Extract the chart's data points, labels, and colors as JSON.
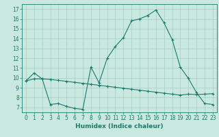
{
  "title": "",
  "xlabel": "Humidex (Indice chaleur)",
  "ylabel": "",
  "xlim": [
    -0.5,
    23.5
  ],
  "ylim": [
    6.5,
    17.5
  ],
  "yticks": [
    7,
    8,
    9,
    10,
    11,
    12,
    13,
    14,
    15,
    16,
    17
  ],
  "xticks": [
    0,
    1,
    2,
    3,
    4,
    5,
    6,
    7,
    8,
    9,
    10,
    11,
    12,
    13,
    14,
    15,
    16,
    17,
    18,
    19,
    20,
    21,
    22,
    23
  ],
  "line1_x": [
    0,
    1,
    2,
    3,
    4,
    5,
    6,
    7,
    8,
    9,
    10,
    11,
    12,
    13,
    14,
    15,
    16,
    17,
    18,
    19,
    20,
    21,
    22,
    23
  ],
  "line1_y": [
    9.7,
    10.5,
    9.9,
    7.3,
    7.4,
    7.1,
    6.9,
    6.8,
    11.1,
    9.5,
    12.0,
    13.2,
    14.1,
    15.8,
    16.0,
    16.35,
    16.9,
    15.6,
    13.9,
    11.1,
    9.95,
    8.5,
    7.4,
    7.3
  ],
  "line2_x": [
    0,
    1,
    2,
    3,
    4,
    5,
    6,
    7,
    8,
    9,
    10,
    11,
    12,
    13,
    14,
    15,
    16,
    17,
    18,
    19,
    20,
    21,
    22,
    23
  ],
  "line2_y": [
    9.7,
    9.9,
    9.9,
    9.85,
    9.75,
    9.65,
    9.55,
    9.45,
    9.35,
    9.25,
    9.15,
    9.05,
    8.95,
    8.85,
    8.75,
    8.65,
    8.55,
    8.45,
    8.35,
    8.25,
    8.35,
    8.3,
    8.35,
    8.4
  ],
  "line_color": "#1a7a6a",
  "bg_color": "#c8e8e0",
  "grid_color": "#a8ccc6",
  "label_fontsize": 6.5,
  "tick_fontsize": 5.5
}
